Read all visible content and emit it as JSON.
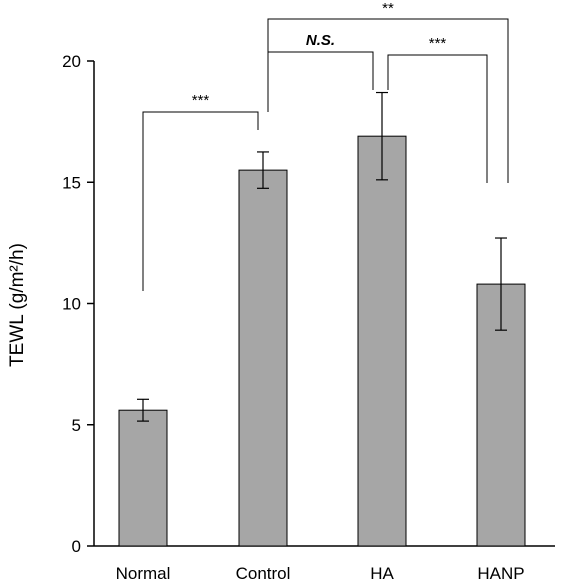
{
  "chart_data": {
    "type": "bar",
    "title": "",
    "xlabel": "",
    "ylabel": "TEWL (g/m²/h)",
    "ylim": [
      0,
      20
    ],
    "yticks": [
      0,
      5,
      10,
      15,
      20
    ],
    "categories": [
      "Normal",
      "Control",
      "HA",
      "HANP"
    ],
    "values": [
      5.6,
      15.5,
      16.9,
      10.8
    ],
    "errors": [
      0.45,
      0.75,
      1.8,
      1.9
    ],
    "bar_color": "#a6a6a6",
    "bar_edge_color": "#000000",
    "grid": false,
    "legend": "none",
    "annotations": [
      {
        "label": "***",
        "from": "Normal",
        "to": "Control",
        "style": "normal"
      },
      {
        "label": "N.S.",
        "from": "Control",
        "to": "HA",
        "style": "italic-bold"
      },
      {
        "label": "***",
        "from": "HA",
        "to": "HANP",
        "style": "normal"
      },
      {
        "label": "**",
        "from": "Control",
        "to": "HANP",
        "style": "normal"
      }
    ]
  }
}
